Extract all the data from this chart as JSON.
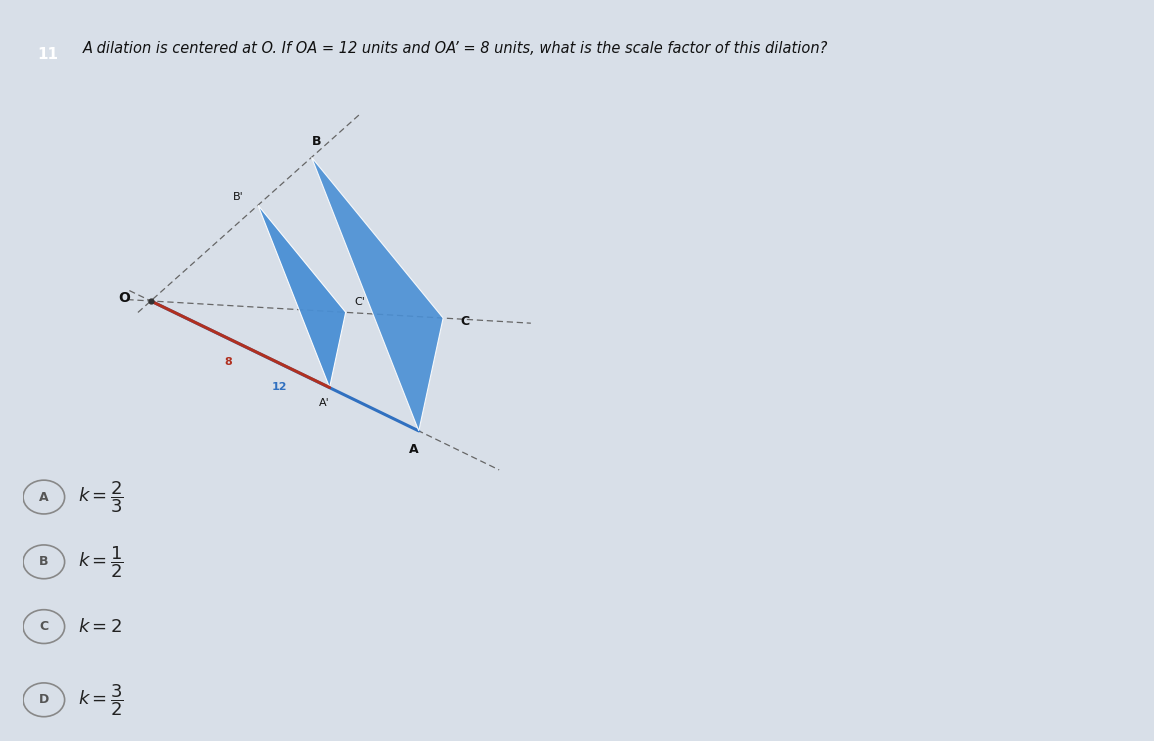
{
  "bg_color": "#d8dfe8",
  "page_color": "#eeeae6",
  "question_num": "11",
  "question_num_bg": "#7a6040",
  "question_text": "A dilation is centered at O. If OA = 12 units and OA’ = 8 units, what is the scale factor of this dilation?",
  "O": [
    0.0,
    0.0
  ],
  "A": [
    0.55,
    -0.38
  ],
  "Ap": [
    0.367,
    -0.253
  ],
  "B": [
    0.33,
    0.42
  ],
  "Bp": [
    0.22,
    0.28
  ],
  "C": [
    0.6,
    -0.05
  ],
  "Cp": [
    0.4,
    -0.033
  ],
  "tri_color": "#4a8fd4",
  "tri_edge_color": "#ffffff",
  "dashed_color": "#666666",
  "line8_color": "#b03020",
  "line12_color": "#3070c0",
  "label_color": "#111111",
  "answer_circle_color": "#888888",
  "answer_label_color": "#555555",
  "answer_text_color": "#222222"
}
